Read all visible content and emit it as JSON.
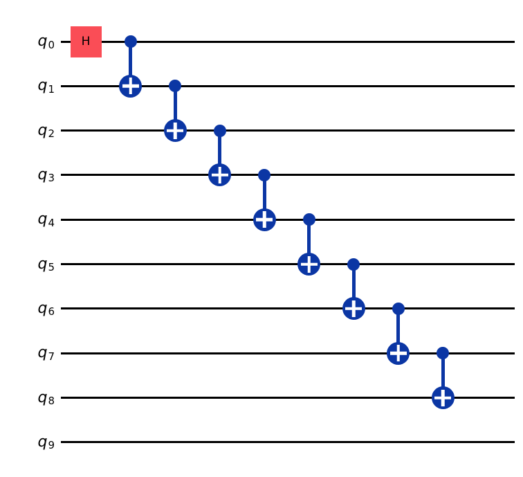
{
  "figure": {
    "type": "quantum-circuit",
    "background": "#ffffff"
  },
  "colors": {
    "wire": "#000000",
    "label_text": "#000000",
    "h_gate_fill": "#FA4D56",
    "h_gate_text": "#000000",
    "cnot_blue": "#0B36A4",
    "target_plus": "#ffffff"
  },
  "circuit": {
    "num_qubits": 10,
    "qubits": [
      {
        "base": "q",
        "sub": "0"
      },
      {
        "base": "q",
        "sub": "1"
      },
      {
        "base": "q",
        "sub": "2"
      },
      {
        "base": "q",
        "sub": "3"
      },
      {
        "base": "q",
        "sub": "4"
      },
      {
        "base": "q",
        "sub": "5"
      },
      {
        "base": "q",
        "sub": "6"
      },
      {
        "base": "q",
        "sub": "7"
      },
      {
        "base": "q",
        "sub": "8"
      },
      {
        "base": "q",
        "sub": "9"
      }
    ],
    "gates": [
      {
        "type": "h",
        "label": "H",
        "qubit": 0,
        "column": 0
      },
      {
        "type": "cx",
        "control": 0,
        "target": 1,
        "column": 1
      },
      {
        "type": "cx",
        "control": 1,
        "target": 2,
        "column": 2
      },
      {
        "type": "cx",
        "control": 2,
        "target": 3,
        "column": 3
      },
      {
        "type": "cx",
        "control": 3,
        "target": 4,
        "column": 4
      },
      {
        "type": "cx",
        "control": 4,
        "target": 5,
        "column": 5
      },
      {
        "type": "cx",
        "control": 5,
        "target": 6,
        "column": 6
      },
      {
        "type": "cx",
        "control": 6,
        "target": 7,
        "column": 7
      },
      {
        "type": "cx",
        "control": 7,
        "target": 8,
        "column": 8
      }
    ]
  }
}
